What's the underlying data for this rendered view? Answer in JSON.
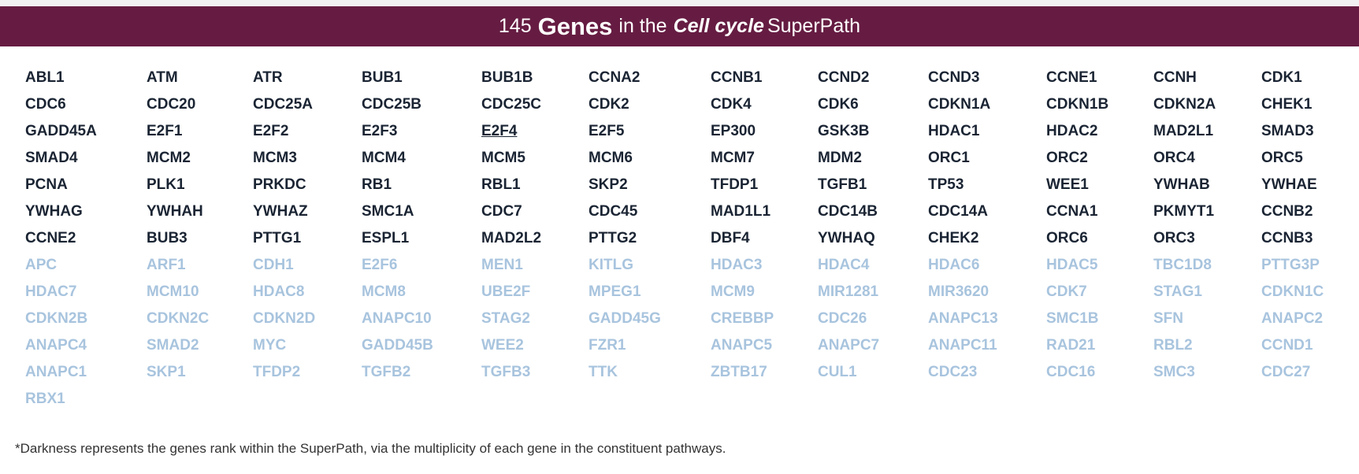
{
  "header": {
    "count": "145",
    "genes_word": "Genes",
    "in_the": "in the",
    "path_name": "Cell cycle",
    "superpath": "SuperPath"
  },
  "colors": {
    "banner_bg": "#661c42",
    "dark_gene": "#1a2433",
    "light_gene": "#a8c4de"
  },
  "genes": [
    {
      "name": "ABL1",
      "tone": "dark"
    },
    {
      "name": "ATM",
      "tone": "dark"
    },
    {
      "name": "ATR",
      "tone": "dark"
    },
    {
      "name": "BUB1",
      "tone": "dark"
    },
    {
      "name": "BUB1B",
      "tone": "dark"
    },
    {
      "name": "CCNA2",
      "tone": "dark"
    },
    {
      "name": "CCNB1",
      "tone": "dark"
    },
    {
      "name": "CCND2",
      "tone": "dark"
    },
    {
      "name": "CCND3",
      "tone": "dark"
    },
    {
      "name": "CCNE1",
      "tone": "dark"
    },
    {
      "name": "CCNH",
      "tone": "dark"
    },
    {
      "name": "CDK1",
      "tone": "dark"
    },
    {
      "name": "CDC6",
      "tone": "dark"
    },
    {
      "name": "CDC20",
      "tone": "dark"
    },
    {
      "name": "CDC25A",
      "tone": "dark"
    },
    {
      "name": "CDC25B",
      "tone": "dark"
    },
    {
      "name": "CDC25C",
      "tone": "dark"
    },
    {
      "name": "CDK2",
      "tone": "dark"
    },
    {
      "name": "CDK4",
      "tone": "dark"
    },
    {
      "name": "CDK6",
      "tone": "dark"
    },
    {
      "name": "CDKN1A",
      "tone": "dark"
    },
    {
      "name": "CDKN1B",
      "tone": "dark"
    },
    {
      "name": "CDKN2A",
      "tone": "dark"
    },
    {
      "name": "CHEK1",
      "tone": "dark"
    },
    {
      "name": "GADD45A",
      "tone": "dark"
    },
    {
      "name": "E2F1",
      "tone": "dark"
    },
    {
      "name": "E2F2",
      "tone": "dark"
    },
    {
      "name": "E2F3",
      "tone": "dark"
    },
    {
      "name": "E2F4",
      "tone": "dark",
      "underline": true
    },
    {
      "name": "E2F5",
      "tone": "dark"
    },
    {
      "name": "EP300",
      "tone": "dark"
    },
    {
      "name": "GSK3B",
      "tone": "dark"
    },
    {
      "name": "HDAC1",
      "tone": "dark"
    },
    {
      "name": "HDAC2",
      "tone": "dark"
    },
    {
      "name": "MAD2L1",
      "tone": "dark"
    },
    {
      "name": "SMAD3",
      "tone": "dark"
    },
    {
      "name": "SMAD4",
      "tone": "dark"
    },
    {
      "name": "MCM2",
      "tone": "dark"
    },
    {
      "name": "MCM3",
      "tone": "dark"
    },
    {
      "name": "MCM4",
      "tone": "dark"
    },
    {
      "name": "MCM5",
      "tone": "dark"
    },
    {
      "name": "MCM6",
      "tone": "dark"
    },
    {
      "name": "MCM7",
      "tone": "dark"
    },
    {
      "name": "MDM2",
      "tone": "dark"
    },
    {
      "name": "ORC1",
      "tone": "dark"
    },
    {
      "name": "ORC2",
      "tone": "dark"
    },
    {
      "name": "ORC4",
      "tone": "dark"
    },
    {
      "name": "ORC5",
      "tone": "dark"
    },
    {
      "name": "PCNA",
      "tone": "dark"
    },
    {
      "name": "PLK1",
      "tone": "dark"
    },
    {
      "name": "PRKDC",
      "tone": "dark"
    },
    {
      "name": "RB1",
      "tone": "dark"
    },
    {
      "name": "RBL1",
      "tone": "dark"
    },
    {
      "name": "SKP2",
      "tone": "dark"
    },
    {
      "name": "TFDP1",
      "tone": "dark"
    },
    {
      "name": "TGFB1",
      "tone": "dark"
    },
    {
      "name": "TP53",
      "tone": "dark"
    },
    {
      "name": "WEE1",
      "tone": "dark"
    },
    {
      "name": "YWHAB",
      "tone": "dark"
    },
    {
      "name": "YWHAE",
      "tone": "dark"
    },
    {
      "name": "YWHAG",
      "tone": "dark"
    },
    {
      "name": "YWHAH",
      "tone": "dark"
    },
    {
      "name": "YWHAZ",
      "tone": "dark"
    },
    {
      "name": "SMC1A",
      "tone": "dark"
    },
    {
      "name": "CDC7",
      "tone": "dark"
    },
    {
      "name": "CDC45",
      "tone": "dark"
    },
    {
      "name": "MAD1L1",
      "tone": "dark"
    },
    {
      "name": "CDC14B",
      "tone": "dark"
    },
    {
      "name": "CDC14A",
      "tone": "dark"
    },
    {
      "name": "CCNA1",
      "tone": "dark"
    },
    {
      "name": "PKMYT1",
      "tone": "dark"
    },
    {
      "name": "CCNB2",
      "tone": "dark"
    },
    {
      "name": "CCNE2",
      "tone": "dark"
    },
    {
      "name": "BUB3",
      "tone": "dark"
    },
    {
      "name": "PTTG1",
      "tone": "dark"
    },
    {
      "name": "ESPL1",
      "tone": "dark"
    },
    {
      "name": "MAD2L2",
      "tone": "dark"
    },
    {
      "name": "PTTG2",
      "tone": "dark"
    },
    {
      "name": "DBF4",
      "tone": "dark"
    },
    {
      "name": "YWHAQ",
      "tone": "dark"
    },
    {
      "name": "CHEK2",
      "tone": "dark"
    },
    {
      "name": "ORC6",
      "tone": "dark"
    },
    {
      "name": "ORC3",
      "tone": "dark"
    },
    {
      "name": "CCNB3",
      "tone": "dark"
    },
    {
      "name": "APC",
      "tone": "light"
    },
    {
      "name": "ARF1",
      "tone": "light"
    },
    {
      "name": "CDH1",
      "tone": "light"
    },
    {
      "name": "E2F6",
      "tone": "light"
    },
    {
      "name": "MEN1",
      "tone": "light"
    },
    {
      "name": "KITLG",
      "tone": "light"
    },
    {
      "name": "HDAC3",
      "tone": "light"
    },
    {
      "name": "HDAC4",
      "tone": "light"
    },
    {
      "name": "HDAC6",
      "tone": "light"
    },
    {
      "name": "HDAC5",
      "tone": "light"
    },
    {
      "name": "TBC1D8",
      "tone": "light"
    },
    {
      "name": "PTTG3P",
      "tone": "light"
    },
    {
      "name": "HDAC7",
      "tone": "light"
    },
    {
      "name": "MCM10",
      "tone": "light"
    },
    {
      "name": "HDAC8",
      "tone": "light"
    },
    {
      "name": "MCM8",
      "tone": "light"
    },
    {
      "name": "UBE2F",
      "tone": "light"
    },
    {
      "name": "MPEG1",
      "tone": "light"
    },
    {
      "name": "MCM9",
      "tone": "light"
    },
    {
      "name": "MIR1281",
      "tone": "light"
    },
    {
      "name": "MIR3620",
      "tone": "light"
    },
    {
      "name": "CDK7",
      "tone": "light"
    },
    {
      "name": "STAG1",
      "tone": "light"
    },
    {
      "name": "CDKN1C",
      "tone": "light"
    },
    {
      "name": "CDKN2B",
      "tone": "light"
    },
    {
      "name": "CDKN2C",
      "tone": "light"
    },
    {
      "name": "CDKN2D",
      "tone": "light"
    },
    {
      "name": "ANAPC10",
      "tone": "light"
    },
    {
      "name": "STAG2",
      "tone": "light"
    },
    {
      "name": "GADD45G",
      "tone": "light"
    },
    {
      "name": "CREBBP",
      "tone": "light"
    },
    {
      "name": "CDC26",
      "tone": "light"
    },
    {
      "name": "ANAPC13",
      "tone": "light"
    },
    {
      "name": "SMC1B",
      "tone": "light"
    },
    {
      "name": "SFN",
      "tone": "light"
    },
    {
      "name": "ANAPC2",
      "tone": "light"
    },
    {
      "name": "ANAPC4",
      "tone": "light"
    },
    {
      "name": "SMAD2",
      "tone": "light"
    },
    {
      "name": "MYC",
      "tone": "light"
    },
    {
      "name": "GADD45B",
      "tone": "light"
    },
    {
      "name": "WEE2",
      "tone": "light"
    },
    {
      "name": "FZR1",
      "tone": "light"
    },
    {
      "name": "ANAPC5",
      "tone": "light"
    },
    {
      "name": "ANAPC7",
      "tone": "light"
    },
    {
      "name": "ANAPC11",
      "tone": "light"
    },
    {
      "name": "RAD21",
      "tone": "light"
    },
    {
      "name": "RBL2",
      "tone": "light"
    },
    {
      "name": "CCND1",
      "tone": "light"
    },
    {
      "name": "ANAPC1",
      "tone": "light"
    },
    {
      "name": "SKP1",
      "tone": "light"
    },
    {
      "name": "TFDP2",
      "tone": "light"
    },
    {
      "name": "TGFB2",
      "tone": "light"
    },
    {
      "name": "TGFB3",
      "tone": "light"
    },
    {
      "name": "TTK",
      "tone": "light"
    },
    {
      "name": "ZBTB17",
      "tone": "light"
    },
    {
      "name": "CUL1",
      "tone": "light"
    },
    {
      "name": "CDC23",
      "tone": "light"
    },
    {
      "name": "CDC16",
      "tone": "light"
    },
    {
      "name": "SMC3",
      "tone": "light"
    },
    {
      "name": "CDC27",
      "tone": "light"
    },
    {
      "name": "RBX1",
      "tone": "light"
    }
  ],
  "footnote": "*Darkness represents the genes rank within the SuperPath, via the multiplicity of each gene in the constituent pathways."
}
